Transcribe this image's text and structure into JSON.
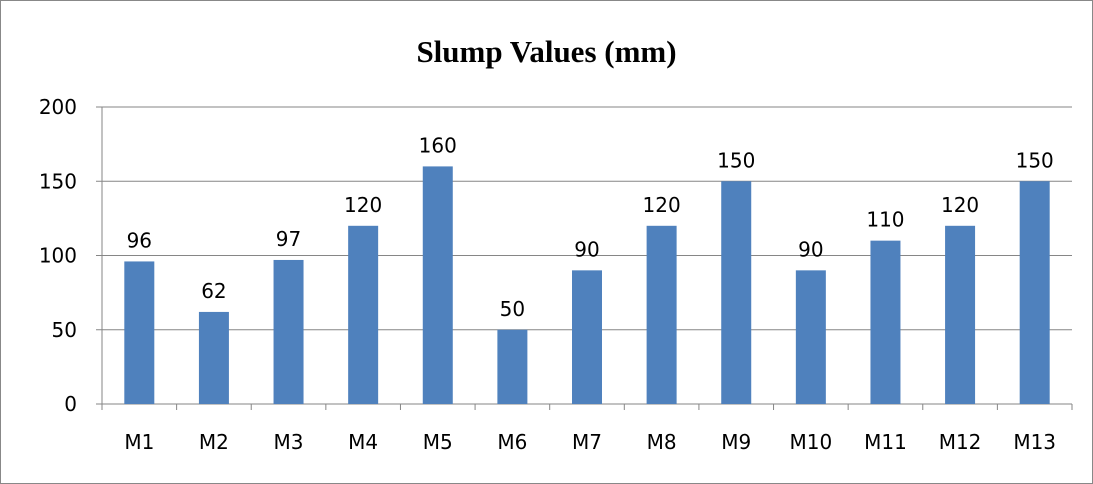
{
  "chart_data": {
    "type": "bar",
    "title": "Slump Values (mm)",
    "xlabel": "",
    "ylabel": "",
    "categories": [
      "M1",
      "M2",
      "M3",
      "M4",
      "M5",
      "M6",
      "M7",
      "M8",
      "M9",
      "M10",
      "M11",
      "M12",
      "M13"
    ],
    "values": [
      96,
      62,
      97,
      120,
      160,
      50,
      90,
      120,
      150,
      90,
      110,
      120,
      150
    ],
    "ylim": [
      0,
      200
    ],
    "yticks": [
      0,
      50,
      100,
      150,
      200
    ],
    "grid": true,
    "legend": "none",
    "data_labels": true,
    "colors": {
      "bar": "#4F81BD",
      "grid": "#868686",
      "axis": "#868686",
      "text": "#000000"
    }
  }
}
